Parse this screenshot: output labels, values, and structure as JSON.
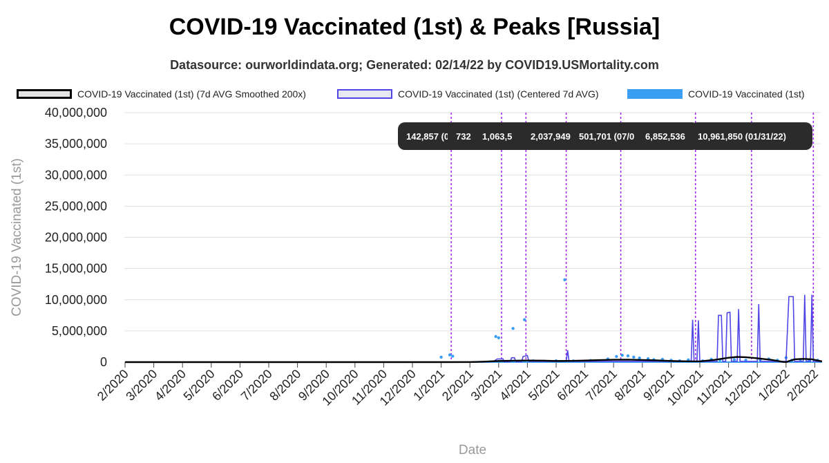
{
  "chart_data": {
    "type": "line",
    "title": "COVID-19 Vaccinated (1st) & Peaks [Russia]",
    "subtitle": "Datasource: ourworldindata.org; Generated: 02/14/22 by COVID19.USMortality.com",
    "xlabel": "Date",
    "ylabel": "COVID-19 Vaccinated (1st)",
    "ylim": [
      0,
      40000000
    ],
    "yticks": [
      "0",
      "5,000,000",
      "10,000,000",
      "15,000,000",
      "20,000,000",
      "25,000,000",
      "30,000,000",
      "35,000,000",
      "40,000,000"
    ],
    "xticks": [
      "2/2020",
      "3/2020",
      "4/2020",
      "5/2020",
      "6/2020",
      "7/2020",
      "8/2020",
      "9/2020",
      "10/2020",
      "11/2020",
      "12/2020",
      "1/2021",
      "2/2021",
      "3/2021",
      "4/2021",
      "5/2021",
      "6/2021",
      "7/2021",
      "8/2021",
      "9/2021",
      "10/2021",
      "11/2021",
      "12/2021",
      "1/2022",
      "2/2022"
    ],
    "grid": true,
    "legend_position": "top",
    "legend": [
      {
        "label": "COVID-19 Vaccinated (1st) (7d AVG Smoothed 200x)",
        "color": "#000000",
        "fill": "#e0e0e0"
      },
      {
        "label": "COVID-19 Vaccinated (1st) (Centered 7d AVG)",
        "color": "#4f46e5",
        "fill": "#e8e8f0"
      },
      {
        "label": "COVID-19 Vaccinated (1st)",
        "color": "#3b9ef5",
        "fill": "#3b9ef5"
      }
    ],
    "series": [
      {
        "name": "COVID-19 Vaccinated (1st) (7d AVG Smoothed 200x)",
        "color": "#000000",
        "points": [
          [
            0,
            0
          ],
          [
            11.0,
            0
          ],
          [
            12.0,
            10000
          ],
          [
            12.5,
            80000
          ],
          [
            13.0,
            180000
          ],
          [
            13.5,
            230000
          ],
          [
            14.0,
            260000
          ],
          [
            14.5,
            240000
          ],
          [
            15.0,
            180000
          ],
          [
            15.5,
            200000
          ],
          [
            16.0,
            250000
          ],
          [
            16.5,
            320000
          ],
          [
            17.0,
            380000
          ],
          [
            17.5,
            400000
          ],
          [
            18.0,
            340000
          ],
          [
            18.5,
            280000
          ],
          [
            19.0,
            180000
          ],
          [
            19.5,
            130000
          ],
          [
            20.0,
            120000
          ],
          [
            20.5,
            350000
          ],
          [
            21.0,
            700000
          ],
          [
            21.3,
            830000
          ],
          [
            21.6,
            780000
          ],
          [
            22.0,
            620000
          ],
          [
            22.5,
            350000
          ],
          [
            22.9,
            40000
          ],
          [
            23.0,
            10000
          ],
          [
            23.3,
            450000
          ],
          [
            23.6,
            520000
          ],
          [
            23.9,
            450000
          ],
          [
            24.1,
            260000
          ],
          [
            24.25,
            120000
          ]
        ]
      },
      {
        "name": "COVID-19 Vaccinated (1st) (Centered 7d AVG)",
        "color": "#4f46e5",
        "points": [
          [
            0,
            0
          ],
          [
            12.0,
            30000
          ],
          [
            12.8,
            60000
          ],
          [
            12.95,
            500000
          ],
          [
            13.15,
            520000
          ],
          [
            13.2,
            60000
          ],
          [
            13.4,
            60000
          ],
          [
            13.45,
            700000
          ],
          [
            13.55,
            700000
          ],
          [
            13.6,
            60000
          ],
          [
            13.8,
            60000
          ],
          [
            13.85,
            900000
          ],
          [
            14.0,
            1050000
          ],
          [
            14.05,
            120000
          ],
          [
            15.35,
            120000
          ],
          [
            15.4,
            1900000
          ],
          [
            15.45,
            120000
          ],
          [
            19.7,
            120000
          ],
          [
            19.75,
            6800000
          ],
          [
            19.8,
            120000
          ],
          [
            19.9,
            120000
          ],
          [
            19.95,
            6700000
          ],
          [
            20.0,
            120000
          ],
          [
            20.6,
            120000
          ],
          [
            20.65,
            7500000
          ],
          [
            20.75,
            7500000
          ],
          [
            20.8,
            120000
          ],
          [
            20.9,
            120000
          ],
          [
            20.95,
            7900000
          ],
          [
            21.05,
            8000000
          ],
          [
            21.1,
            120000
          ],
          [
            21.3,
            120000
          ],
          [
            21.35,
            8500000
          ],
          [
            21.4,
            120000
          ],
          [
            22.0,
            120000
          ],
          [
            22.05,
            9300000
          ],
          [
            22.1,
            120000
          ],
          [
            23.0,
            120000
          ],
          [
            23.1,
            10500000
          ],
          [
            23.25,
            10500000
          ],
          [
            23.3,
            120000
          ],
          [
            23.6,
            120000
          ],
          [
            23.65,
            10800000
          ],
          [
            23.7,
            120000
          ],
          [
            23.85,
            120000
          ],
          [
            23.9,
            10800000
          ],
          [
            23.95,
            120000
          ],
          [
            24.25,
            100000
          ]
        ]
      },
      {
        "name": "COVID-19 Vaccinated (1st)",
        "color": "#3b9ef5",
        "points": [
          [
            11.0,
            800000
          ],
          [
            11.3,
            1150000
          ],
          [
            11.4,
            950000
          ],
          [
            12.9,
            4100000
          ],
          [
            13.0,
            3900000
          ],
          [
            13.5,
            5400000
          ],
          [
            13.9,
            6800000
          ],
          [
            15.3,
            13200000
          ],
          [
            14.2,
            200000
          ],
          [
            14.6,
            150000
          ],
          [
            15.0,
            220000
          ],
          [
            15.6,
            180000
          ],
          [
            16.2,
            250000
          ],
          [
            16.8,
            500000
          ],
          [
            17.1,
            900000
          ],
          [
            17.3,
            1100000
          ],
          [
            17.5,
            1000000
          ],
          [
            17.7,
            800000
          ],
          [
            17.9,
            650000
          ],
          [
            18.2,
            550000
          ],
          [
            18.4,
            400000
          ],
          [
            18.7,
            450000
          ],
          [
            19.0,
            300000
          ],
          [
            19.3,
            200000
          ],
          [
            19.6,
            350000
          ],
          [
            20.1,
            200000
          ],
          [
            20.4,
            450000
          ],
          [
            20.7,
            350000
          ],
          [
            21.2,
            400000
          ],
          [
            21.6,
            300000
          ],
          [
            22.1,
            350000
          ],
          [
            22.4,
            500000
          ],
          [
            22.7,
            300000
          ],
          [
            23.0,
            700000
          ],
          [
            23.2,
            300000
          ],
          [
            23.5,
            400000
          ],
          [
            23.8,
            250000
          ],
          [
            24.1,
            300000
          ]
        ]
      }
    ],
    "peaks": [
      {
        "x": 11.35,
        "label": "142,857 (0"
      },
      {
        "x": 13.1,
        "label": "732"
      },
      {
        "x": 13.95,
        "label": "1,063,5"
      },
      {
        "x": 15.35,
        "label": "2,037,949 (0"
      },
      {
        "x": 17.25,
        "label": "501,701 (07/0"
      },
      {
        "x": 19.85,
        "label": "6,852,536"
      },
      {
        "x": 21.8,
        "label": ""
      },
      {
        "x": 23.95,
        "label": "10,961,850 (01/31/22)"
      }
    ]
  }
}
